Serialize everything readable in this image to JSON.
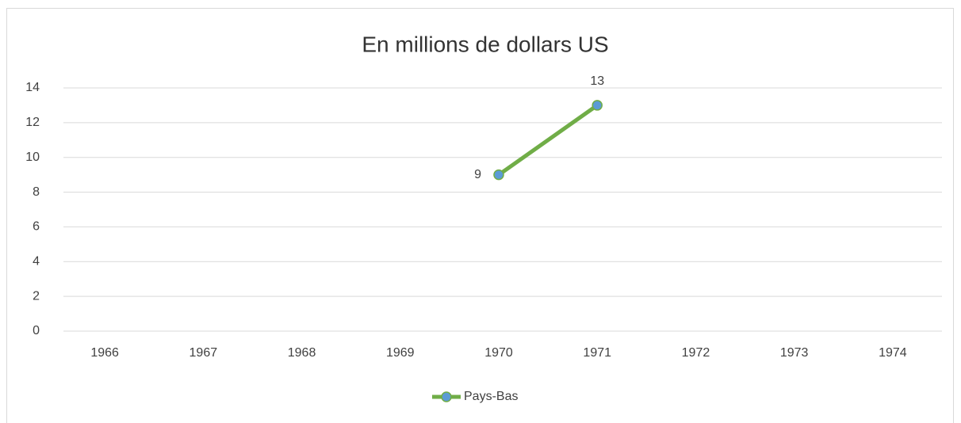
{
  "chart_data": {
    "type": "line",
    "title": "En millions de dollars US",
    "categories": [
      "1966",
      "1967",
      "1968",
      "1969",
      "1970",
      "1971",
      "1972",
      "1973",
      "1974"
    ],
    "series": [
      {
        "name": "Pays-Bas",
        "color": "#70ad47",
        "marker_color": "#5b9bd5",
        "values": [
          null,
          null,
          null,
          null,
          9,
          13,
          null,
          null,
          null
        ]
      }
    ],
    "ylim": [
      0,
      14
    ],
    "yticks": [
      0,
      2,
      4,
      6,
      8,
      10,
      12,
      14
    ],
    "grid": true,
    "legend": "bottom"
  }
}
